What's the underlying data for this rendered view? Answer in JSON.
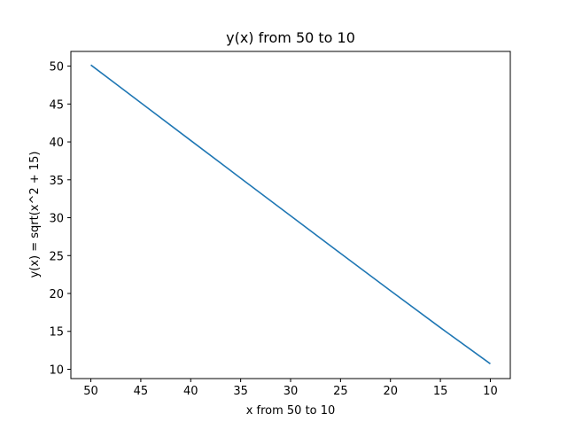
{
  "chart_data": {
    "type": "line",
    "title": "y(x) from 50 to 10",
    "xlabel": "x from 50 to 10",
    "ylabel": "y(x) = sqrt(x^2 + 15)",
    "x_reversed": true,
    "xlim": [
      52.0,
      8.0
    ],
    "ylim": [
      8.77,
      51.94
    ],
    "xticks": [
      50,
      45,
      40,
      35,
      30,
      25,
      20,
      15,
      10
    ],
    "yticks": [
      10,
      15,
      20,
      25,
      30,
      35,
      40,
      45,
      50
    ],
    "grid": false,
    "legend": "none",
    "series": [
      {
        "color": "#1f77b4",
        "x": [
          50,
          45,
          40,
          35,
          30,
          25,
          20,
          15,
          10
        ],
        "y": [
          50.15,
          45.17,
          40.19,
          35.21,
          30.25,
          25.3,
          20.37,
          15.49,
          10.72
        ]
      }
    ]
  }
}
